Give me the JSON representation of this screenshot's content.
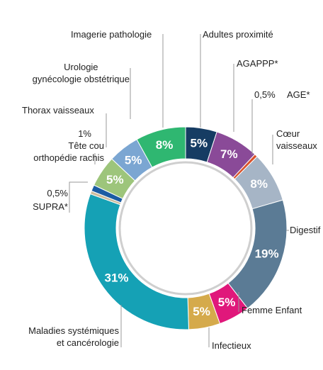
{
  "chart_data": {
    "type": "donut",
    "categories": [
      "Adultes proximité",
      "AGAPPP*",
      "AGE*",
      "Cœur\nvaisseaux",
      "Digestif",
      "Femme Enfant",
      "Infectieux",
      "Maladies systémiques\net cancérologie",
      "SUPRA*",
      "Tête cou\northopédie rachis",
      "Thorax vaisseaux",
      "Urologie\ngynécologie obstétrique",
      "Imagerie pathologie"
    ],
    "values": [
      5,
      7,
      0.5,
      8,
      19,
      5,
      5,
      31,
      0.5,
      1,
      5,
      5,
      8
    ],
    "value_labels": [
      "5%",
      "7%",
      "0,5%",
      "8%",
      "19%",
      "5%",
      "5%",
      "31%",
      "0,5%",
      "1%",
      "5%",
      "5%",
      "8%"
    ],
    "colors": [
      "#163c63",
      "#8a4a98",
      "#d9532b",
      "#a6b5c6",
      "#5b7b95",
      "#e0187b",
      "#d5aa4b",
      "#15a1b5",
      "#cbbb9c",
      "#1b5ca3",
      "#9dc57b",
      "#7ba6d2",
      "#2fb771"
    ]
  }
}
